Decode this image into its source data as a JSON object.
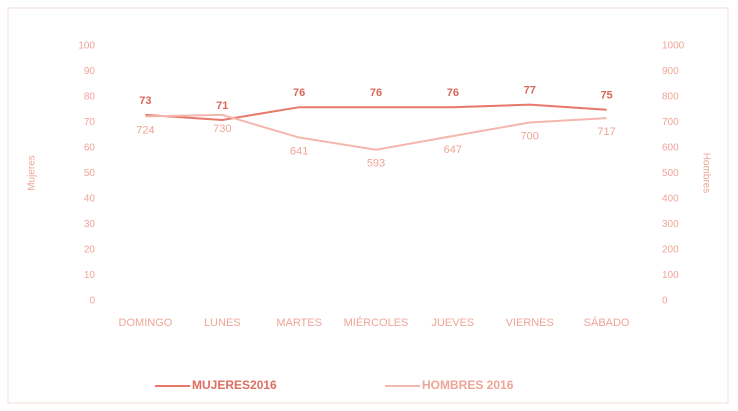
{
  "chart_data": {
    "type": "line",
    "categories": [
      "DOMINGO",
      "LUNES",
      "MARTES",
      "MIÉRCOLES",
      "JUEVES",
      "VIERNES",
      "SÁBADO"
    ],
    "series": [
      {
        "name": "MUJERES2016",
        "color": "#e8786a",
        "values": [
          73,
          71,
          76,
          76,
          76,
          77,
          75
        ]
      },
      {
        "name": "HOMBRES 2016",
        "color": "#f4b7ad",
        "axis": "y2",
        "values": [
          724,
          730,
          641,
          593,
          647,
          700,
          717
        ]
      }
    ],
    "y_label": "Mujeres",
    "y2_label": "Hombres",
    "ylim": [
      0,
      100
    ],
    "yticks": [
      0,
      10,
      20,
      30,
      40,
      50,
      60,
      70,
      80,
      90,
      100
    ],
    "y2lim": [
      0,
      1000
    ],
    "y2ticks": [
      0,
      100,
      200,
      300,
      400,
      500,
      600,
      700,
      800,
      900,
      1000
    ],
    "grid": false,
    "legend": "bottom"
  }
}
